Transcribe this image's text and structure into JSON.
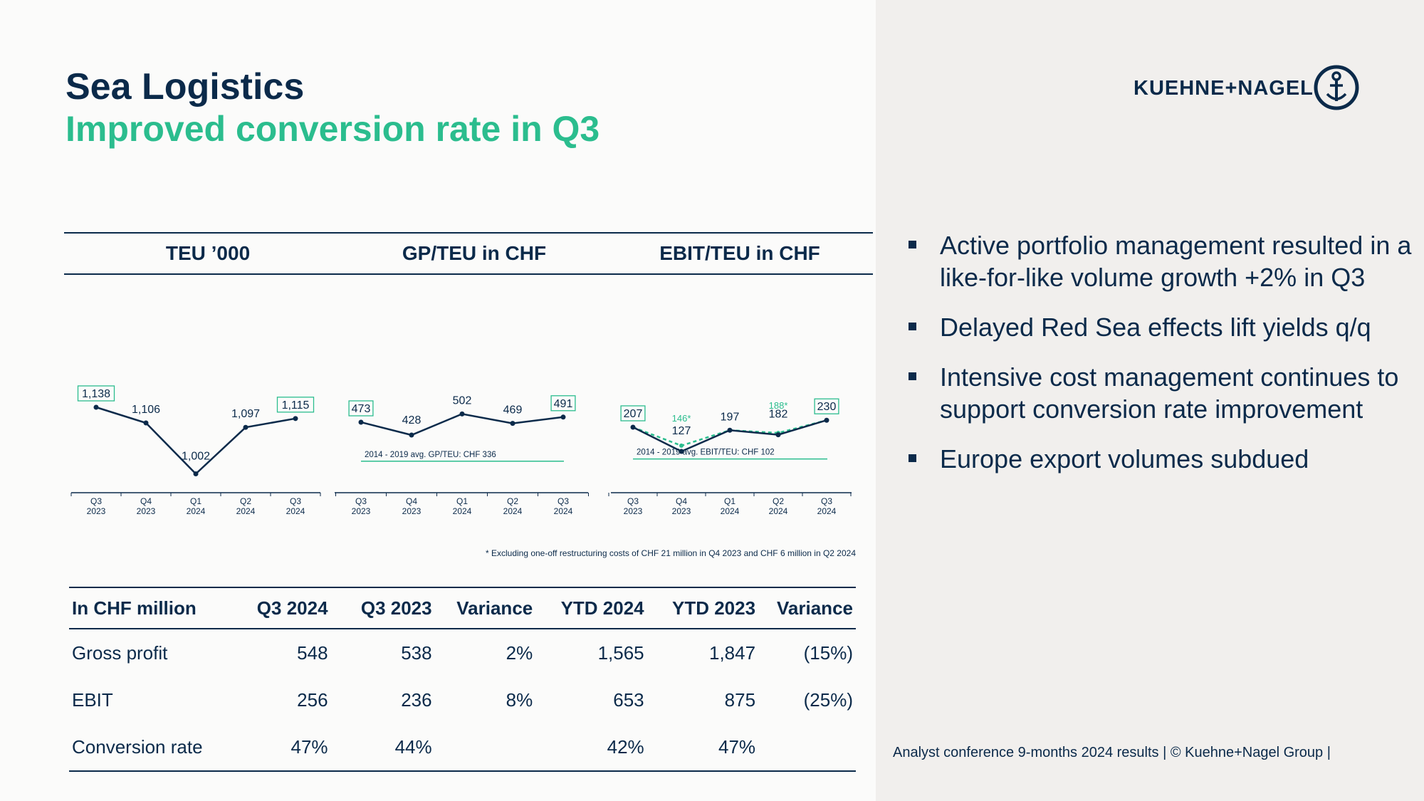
{
  "slide": {
    "title": "Sea Logistics",
    "subtitle": "Improved conversion rate in Q3",
    "footer": "Analyst conference 9-months 2024 results | © Kuehne+Nagel Group |"
  },
  "logo": {
    "text": "KUEHNE+NAGEL",
    "icon": "anchor-icon"
  },
  "headers": [
    "TEU ’000",
    "GP/TEU in CHF",
    "EBIT/TEU in CHF"
  ],
  "chart_data": [
    {
      "type": "line",
      "title": "TEU ’000",
      "categories": [
        [
          "Q3",
          "2023"
        ],
        [
          "Q4",
          "2023"
        ],
        [
          "Q1",
          "2024"
        ],
        [
          "Q2",
          "2024"
        ],
        [
          "Q3",
          "2024"
        ]
      ],
      "series": [
        {
          "values": [
            1138,
            1106,
            1002,
            1097,
            1115
          ],
          "labels": [
            "1,138",
            "1,106",
            "1,002",
            "1,097",
            "1,115"
          ],
          "boxed": [
            true,
            false,
            false,
            false,
            true
          ]
        }
      ]
    },
    {
      "type": "line",
      "title": "GP/TEU in CHF",
      "categories": [
        [
          "Q3",
          "2023"
        ],
        [
          "Q4",
          "2023"
        ],
        [
          "Q1",
          "2024"
        ],
        [
          "Q2",
          "2024"
        ],
        [
          "Q3",
          "2024"
        ]
      ],
      "series": [
        {
          "values": [
            473,
            428,
            502,
            469,
            491
          ],
          "labels": [
            "473",
            "428",
            "502",
            "469",
            "491"
          ],
          "boxed": [
            true,
            false,
            false,
            false,
            true
          ]
        }
      ],
      "reference_line": {
        "value": 336,
        "label": "2014 - 2019 avg. GP/TEU: CHF 336"
      }
    },
    {
      "type": "line",
      "title": "EBIT/TEU in CHF",
      "categories": [
        [
          "Q3",
          "2023"
        ],
        [
          "Q4",
          "2023"
        ],
        [
          "Q1",
          "2024"
        ],
        [
          "Q2",
          "2024"
        ],
        [
          "Q3",
          "2024"
        ]
      ],
      "series": [
        {
          "values": [
            207,
            127,
            197,
            182,
            230
          ],
          "labels": [
            "207",
            "127",
            "197",
            "182",
            "230"
          ],
          "boxed": [
            true,
            false,
            false,
            false,
            true
          ]
        },
        {
          "style": "dashed",
          "values": [
            207,
            146,
            197,
            188,
            230
          ],
          "labels": [
            "",
            "146*",
            "",
            "188*",
            ""
          ]
        }
      ],
      "reference_line": {
        "value": 102,
        "label": "2014 - 2019 avg. EBIT/TEU: CHF 102"
      }
    }
  ],
  "footnote": "* Excluding one-off restructuring costs of CHF 21 million in Q4 2023 and CHF 6 million in Q2 2024",
  "table": {
    "columns": [
      "In CHF million",
      "Q3 2024",
      "Q3 2023",
      "Variance",
      "YTD 2024",
      "YTD 2023",
      "Variance"
    ],
    "rows": [
      [
        "Gross profit",
        "548",
        "538",
        "2%",
        "1,565",
        "1,847",
        "(15%)"
      ],
      [
        "EBIT",
        "256",
        "236",
        "8%",
        "653",
        "875",
        "(25%)"
      ],
      [
        "Conversion rate",
        "47%",
        "44%",
        "",
        "42%",
        "47%",
        ""
      ]
    ]
  },
  "bullets": [
    "Active portfolio management resulted in a like-for-like volume growth +2% in Q3",
    "Delayed Red Sea effects lift yields q/q",
    "Intensive cost management continues to support conversion rate improvement",
    "Europe export volumes subdued"
  ],
  "colors": {
    "navy": "#0b2a4a",
    "green": "#2bbd8e",
    "panel": "#f1efed"
  }
}
